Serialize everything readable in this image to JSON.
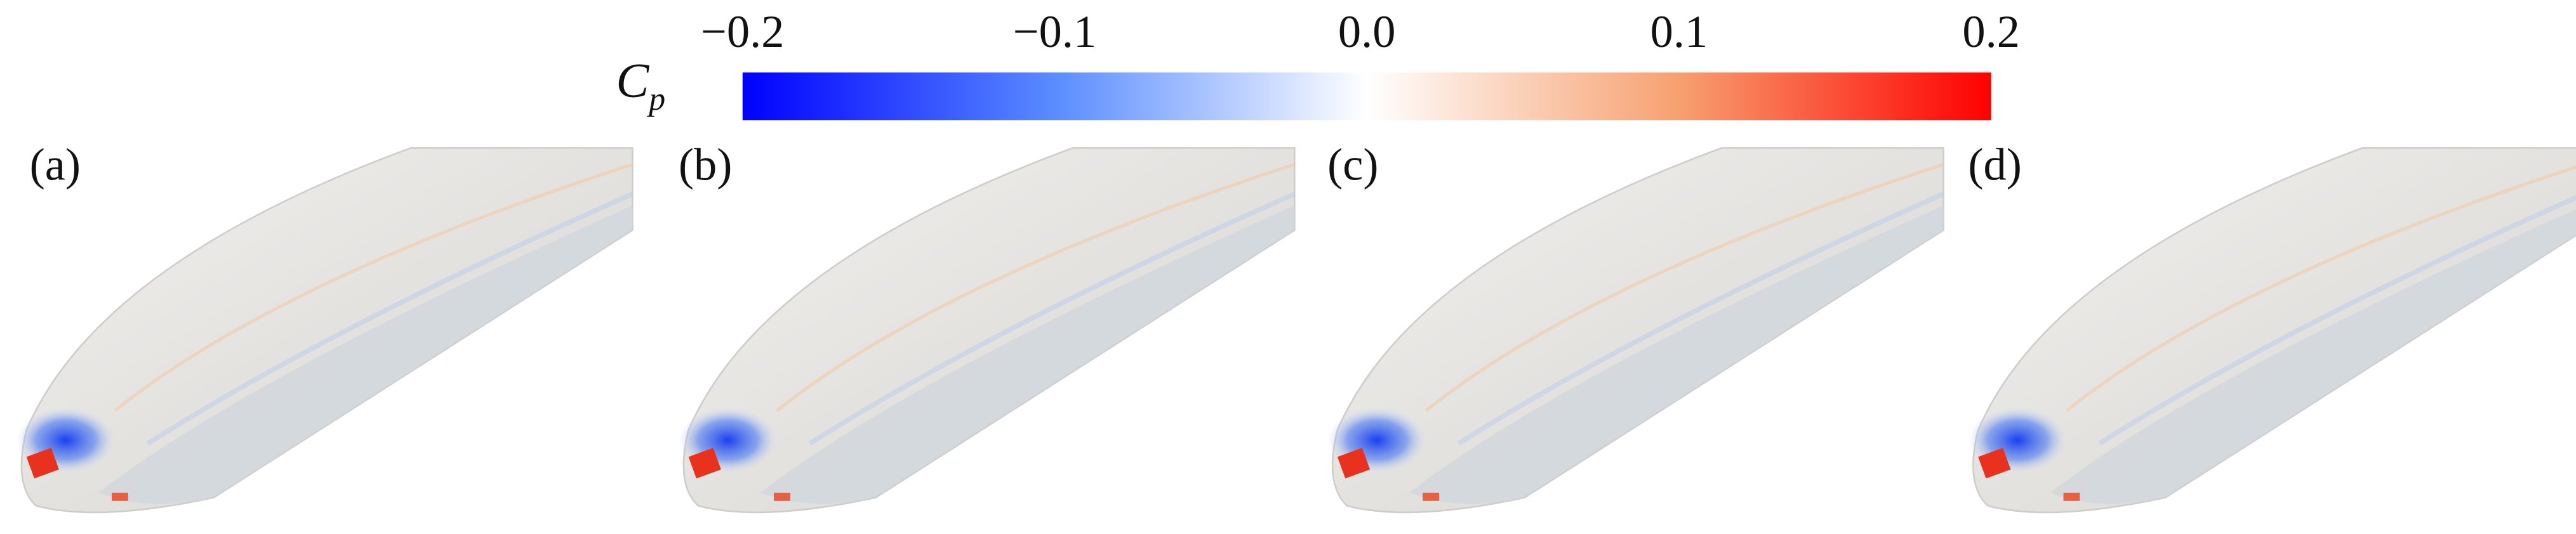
{
  "colorbar": {
    "label": "C",
    "label_subscript": "p",
    "lim": [
      -0.2,
      0.2
    ],
    "ticks": [
      {
        "value": -0.2,
        "label": "−0.2"
      },
      {
        "value": -0.1,
        "label": "−0.1"
      },
      {
        "value": 0,
        "label": "0.0"
      },
      0.1,
      0.2
    ],
    "colors": [
      "#0000ff",
      "#5a8cff",
      "#ffffff",
      "#f7a070",
      "#ff0000"
    ]
  },
  "panels": [
    {
      "label": "(a)"
    },
    {
      "label": "(b)"
    },
    {
      "label": "(c)"
    },
    {
      "label": "(d)"
    }
  ]
}
